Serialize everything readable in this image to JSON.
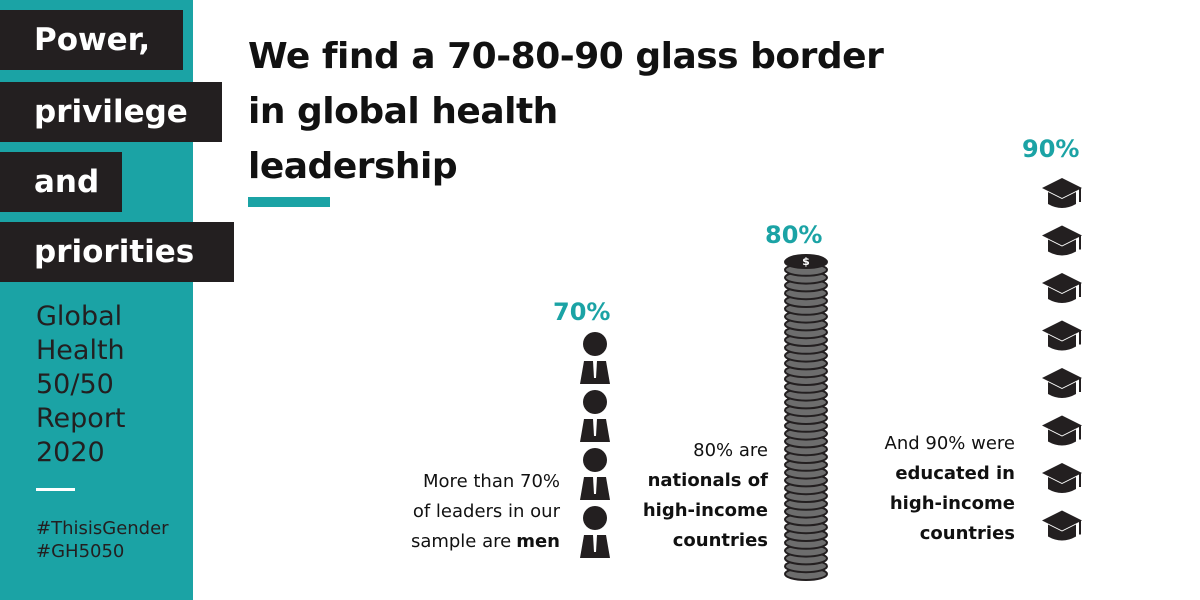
{
  "sidebar": {
    "headline": [
      "Power,",
      "privilege",
      "and",
      "priorities"
    ],
    "report": [
      "Global",
      "Health",
      "50/50",
      "Report",
      "2020"
    ],
    "hashtags": [
      "#ThisisGender",
      "#GH5050"
    ]
  },
  "title": [
    "We find a 70-80-90 glass border",
    "in global health",
    "leadership"
  ],
  "stats": [
    {
      "label": "70%",
      "caption": [
        [
          {
            "text": "More than 70%",
            "bold": false
          }
        ],
        [
          {
            "text": "of leaders in our",
            "bold": false
          }
        ],
        [
          {
            "text": "sample are",
            "bold": false
          },
          {
            "text": "men",
            "bold": true
          }
        ]
      ]
    },
    {
      "label": "80%",
      "icon_text": "$",
      "caption": [
        [
          {
            "text": "80% are",
            "bold": false
          }
        ],
        [
          {
            "text": "nationals of",
            "bold": true
          }
        ],
        [
          {
            "text": "high-income",
            "bold": true
          }
        ],
        [
          {
            "text": "countries",
            "bold": true
          }
        ]
      ]
    },
    {
      "label": "90%",
      "caption": [
        [
          {
            "text": "And 90% were",
            "bold": false
          }
        ],
        [
          {
            "text": "educated in",
            "bold": true
          }
        ],
        [
          {
            "text": "high-income",
            "bold": true
          }
        ],
        [
          {
            "text": "countries",
            "bold": true
          }
        ]
      ]
    }
  ]
}
